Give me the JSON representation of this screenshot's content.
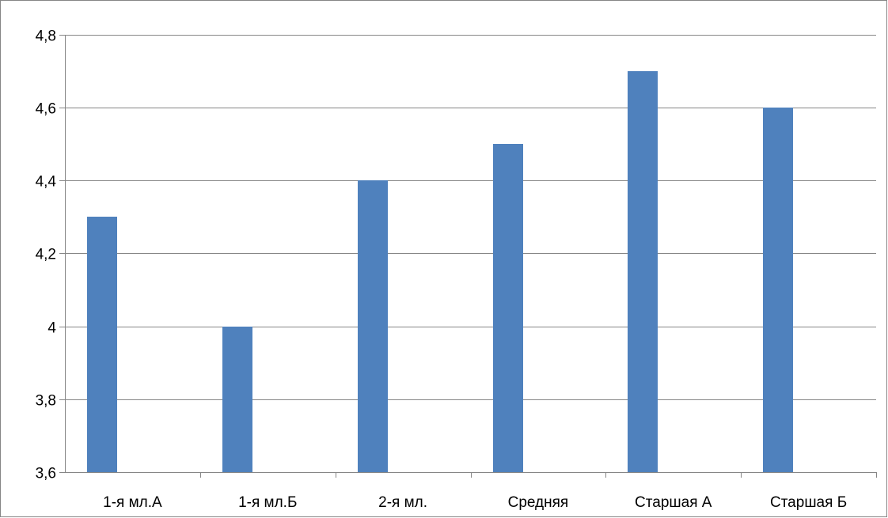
{
  "chart_data": {
    "type": "bar",
    "categories": [
      "1-я мл.А",
      "1-я мл.Б",
      "2-я мл.",
      "Средняя",
      "Старшая А",
      "Старшая Б"
    ],
    "values": [
      4.3,
      4.0,
      4.4,
      4.5,
      4.7,
      4.6
    ],
    "ylim": [
      3.6,
      4.8
    ],
    "yticks": [
      "3,6",
      "3,8",
      "4",
      "4,2",
      "4,4",
      "4,6",
      "4,8"
    ],
    "title": "",
    "xlabel": "",
    "ylabel": "",
    "grid": true,
    "legend": "none",
    "bar_color": "#4F81BD",
    "grid_color": "#868686"
  }
}
